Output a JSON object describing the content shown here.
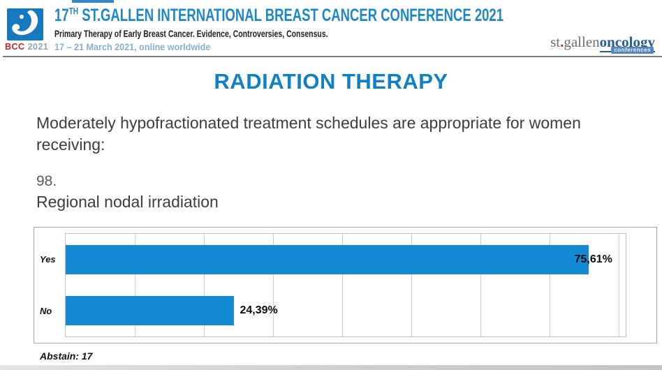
{
  "colors": {
    "header_blue": "#1e87c8",
    "dates_blue": "#85b1d6",
    "logo_square_blue": "#1779bd",
    "bcc_red": "#c4252b",
    "bcc_year_gray": "#8ba3bc",
    "section_title_blue": "#0e80c5",
    "bar_blue": "#1389d4",
    "oncology_blue": "#24608f"
  },
  "header": {
    "logo": {
      "acronym": "BCC",
      "year": "2021"
    },
    "title": {
      "num": "17",
      "sup": "TH",
      "rest": " ST.GALLEN INTERNATIONAL BREAST CANCER CONFERENCE 2021"
    },
    "subtitle": "Primary Therapy of Early Breast Cancer. Evidence, Controversies, Consensus.",
    "dates": "17 – 21 March 2021, online worldwide",
    "org": {
      "prefix": "st",
      "dot": ".",
      "middle": "gallen",
      "suffix": "oncology",
      "badge": "conferences"
    }
  },
  "main": {
    "section_title": "RADIATION THERAPY",
    "question": "Moderately hypofractionated treatment schedules are appropriate for women receiving:",
    "question_number": "98.",
    "question_item": "Regional nodal irradiation",
    "abstain_label": "Abstain: 17"
  },
  "chart_data": {
    "type": "bar",
    "orientation": "horizontal",
    "title": "",
    "categories": [
      "Yes",
      "No"
    ],
    "values": [
      75.61,
      24.39
    ],
    "value_labels": [
      "75,61%",
      "24,39%"
    ],
    "xlim": [
      0,
      81
    ],
    "gridline_interval": 10,
    "grid": true,
    "legend": false,
    "bar_color": "#1389d4",
    "abstain": 17
  }
}
